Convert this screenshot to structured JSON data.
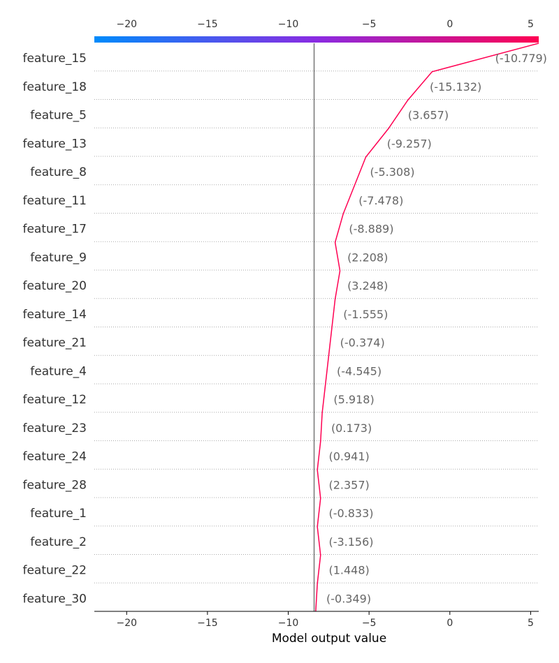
{
  "chart_data": {
    "type": "line",
    "xlabel": "Model output value",
    "xlim": [
      -22,
      5.5
    ],
    "xticks": [
      -20,
      -15,
      -10,
      -5,
      0,
      5
    ],
    "xtick_labels": [
      "−20",
      "−15",
      "−10",
      "−5",
      "0",
      "5"
    ],
    "base_value": -8.4,
    "colorbar": {
      "low_color": "#008bfb",
      "mid_color": "#8a2be2",
      "high_color": "#ff0052"
    },
    "line_color": "#ff0052",
    "features": [
      {
        "name": "feature_15",
        "value_label": "(-10.779)",
        "output": 5.5
      },
      {
        "name": "feature_18",
        "value_label": "(-15.132)",
        "output": -1.1
      },
      {
        "name": "feature_5",
        "value_label": "(3.657)",
        "output": -2.6
      },
      {
        "name": "feature_13",
        "value_label": "(-9.257)",
        "output": -3.8
      },
      {
        "name": "feature_8",
        "value_label": "(-5.308)",
        "output": -5.2
      },
      {
        "name": "feature_11",
        "value_label": "(-7.478)",
        "output": -5.9
      },
      {
        "name": "feature_17",
        "value_label": "(-8.889)",
        "output": -6.6
      },
      {
        "name": "feature_9",
        "value_label": "(2.208)",
        "output": -7.1
      },
      {
        "name": "feature_20",
        "value_label": "(3.248)",
        "output": -6.8
      },
      {
        "name": "feature_14",
        "value_label": "(-1.555)",
        "output": -7.1
      },
      {
        "name": "feature_21",
        "value_label": "(-0.374)",
        "output": -7.3
      },
      {
        "name": "feature_4",
        "value_label": "(-4.545)",
        "output": -7.5
      },
      {
        "name": "feature_12",
        "value_label": "(5.918)",
        "output": -7.7
      },
      {
        "name": "feature_23",
        "value_label": "(0.173)",
        "output": -7.9
      },
      {
        "name": "feature_24",
        "value_label": "(0.941)",
        "output": -8.0
      },
      {
        "name": "feature_28",
        "value_label": "(2.357)",
        "output": -8.2
      },
      {
        "name": "feature_1",
        "value_label": "(-0.833)",
        "output": -8.0
      },
      {
        "name": "feature_2",
        "value_label": "(-3.156)",
        "output": -8.2
      },
      {
        "name": "feature_22",
        "value_label": "(1.448)",
        "output": -8.0
      },
      {
        "name": "feature_30",
        "value_label": "(-0.349)",
        "output": -8.2
      }
    ],
    "final_output": -8.3
  }
}
